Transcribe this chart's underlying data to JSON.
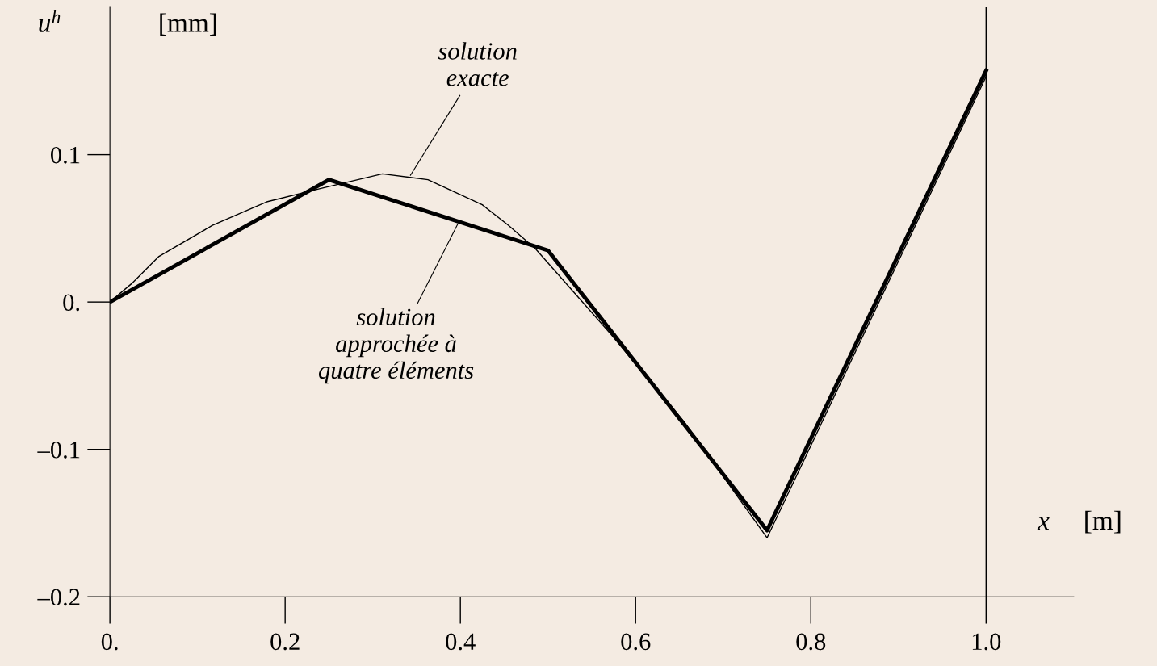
{
  "chart_data": {
    "type": "line",
    "ylabel": "u$^{h}$",
    "xlabel": "x",
    "annotations": [
      "[mm]",
      "[m]",
      {
        "text": "solution\nexacte",
        "x": 0.343,
        "y": 0.086
      },
      {
        "text": "solution\napprochée à\nquatre éléments",
        "x": 0.397,
        "y": 0.053
      }
    ],
    "series": [
      {
        "color": "#000000",
        "x": [
          0,
          0.025,
          0.056,
          0.117,
          0.179,
          0.24,
          0.311,
          0.363,
          0.425,
          0.455,
          0.486,
          0.572,
          0.655,
          0.75,
          1.0
        ],
        "values": [
          0,
          0.0126,
          0.031,
          0.052,
          0.068,
          0.077,
          0.087,
          0.083,
          0.066,
          0.052,
          0.036,
          -0.022,
          -0.081,
          -0.16,
          0.153
        ]
      },
      {
        "color": "#000000",
        "x": [
          0,
          0.25,
          0.5,
          0.75,
          1.0
        ],
        "values": [
          0,
          0.083,
          0.035,
          -0.155,
          0.157
        ]
      }
    ],
    "xlim": [
      0,
      1.1
    ],
    "ylim": [
      -0.2,
      0.2
    ],
    "xticks": [
      {
        "value": 0,
        "label": "0."
      },
      0.2,
      0.4,
      0.6,
      0.8,
      {
        "value": 1.0,
        "label": "1.0"
      }
    ],
    "yticks": [
      {
        "value": -0.2,
        "label": "–0.2"
      },
      {
        "value": -0.1,
        "label": "–0.1"
      },
      {
        "value": 0,
        "label": "0."
      },
      0.1
    ],
    "ref_lines": [
      {
        "axis": "x",
        "value": 1.0,
        "color": "#000000"
      }
    ],
    "grid": false,
    "legend": false
  }
}
